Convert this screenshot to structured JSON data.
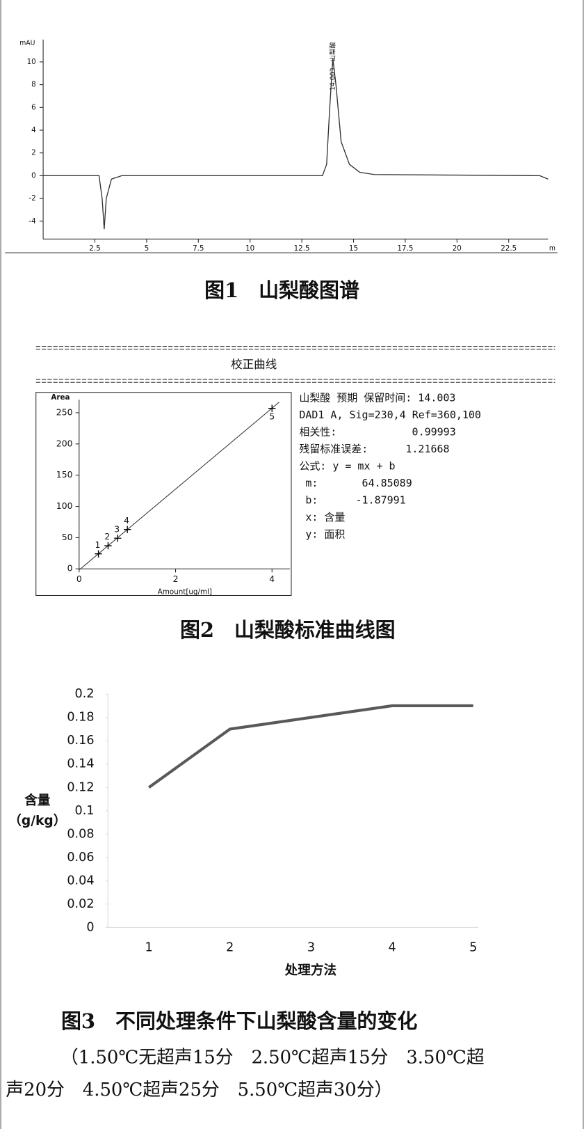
{
  "chart_data": [
    {
      "type": "line",
      "y_label": "mAU",
      "x_label": "m",
      "peak_label": "14.003 - 山梨酸",
      "x": [
        0,
        2.7,
        2.85,
        2.95,
        3.05,
        3.3,
        3.8,
        13.5,
        13.7,
        13.85,
        14.0,
        14.15,
        14.4,
        14.8,
        15.3,
        16,
        20,
        24,
        24.4
      ],
      "series": [
        {
          "color": "#333333",
          "values": [
            0,
            0,
            -2,
            -4.7,
            -2,
            -0.3,
            0,
            0,
            1,
            6,
            10.3,
            8,
            3,
            1,
            0.3,
            0.1,
            0.05,
            0,
            -0.3
          ]
        }
      ],
      "xlim": [
        0,
        24.4
      ],
      "xticks": [
        2.5,
        5,
        7.5,
        10,
        12.5,
        15,
        17.5,
        20,
        22.5
      ],
      "ylim": [
        -5.57,
        11.96
      ],
      "yticks": [
        -4,
        -2,
        0,
        2,
        4,
        6,
        8,
        10
      ]
    },
    {
      "type": "scatter",
      "title": "校正曲线",
      "y_label": "Area",
      "x_label": "Amount[ug/ml]",
      "x": [
        0.4,
        0.6,
        0.8,
        1.0,
        4.0
      ],
      "series": [
        {
          "color": "#000000",
          "values": [
            24,
            37,
            49,
            63,
            257
          ],
          "point_labels": [
            "1",
            "2",
            "3",
            "4",
            "5"
          ]
        }
      ],
      "fit": {
        "x": [
          0,
          4.15
        ],
        "values": [
          -1.9,
          267
        ]
      },
      "annotations": [
        "山梨酸 预期 保留时间: 14.003",
        "DAD1 A, Sig=230,4 Ref=360,100",
        "相关性:            0.99993",
        "残留标准误差:      1.21668",
        "公式: y = mx + b",
        " m:       64.85089",
        " b:      -1.87991",
        " x: 含量",
        " y: 面积"
      ],
      "xlim": [
        0,
        4.37
      ],
      "xticks": [
        0,
        2,
        4
      ],
      "ylim": [
        0,
        271
      ],
      "yticks": [
        0,
        50,
        100,
        150,
        200,
        250
      ]
    },
    {
      "type": "line",
      "y_label": [
        "含量",
        "（g/kg）"
      ],
      "x_label": "处理方法",
      "categories": [
        "1",
        "2",
        "3",
        "4",
        "5"
      ],
      "series": [
        {
          "color": "#595959",
          "values": [
            0.12,
            0.17,
            0.18,
            0.19,
            0.19
          ]
        }
      ],
      "ylim": [
        0,
        0.2
      ],
      "yticks": [
        0,
        0.02,
        0.04,
        0.06,
        0.08,
        0.1,
        0.12,
        0.14,
        0.16,
        0.18,
        0.2
      ]
    }
  ],
  "captions": [
    "图1　山梨酸图谱",
    "图2　山梨酸标准曲线图",
    "图3　不同处理条件下山梨酸含量的变化"
  ],
  "note": [
    "（1.50℃无超声15分　2.50℃超声15分　3.50℃超",
    "声20分　4.50℃超声25分　5.50℃超声30分）"
  ]
}
